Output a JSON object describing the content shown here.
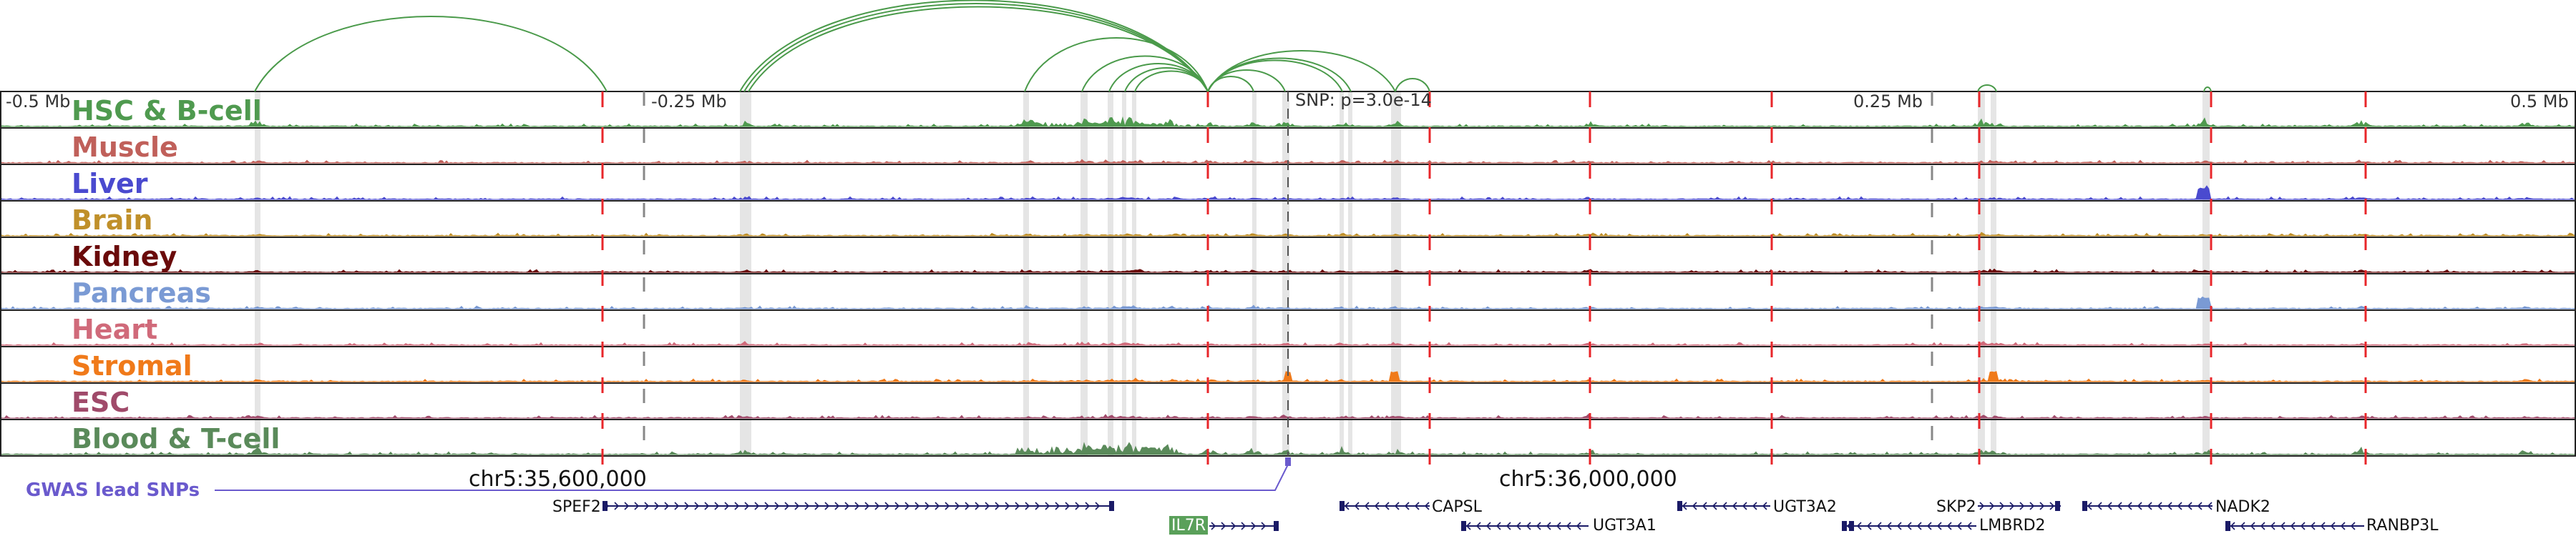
{
  "colors": {
    "link": "#4a9a4a",
    "gwas": "#6a5acd",
    "dash": "#e8262a",
    "highlight": "#dcdcdc",
    "gene": "#1a1a66",
    "il7r_bg": "#5aa05a"
  },
  "ruler": {
    "ticks": [
      {
        "label": "-0.5 Mb"
      },
      {
        "label": "-0.25 Mb"
      },
      {
        "label": "0.25 Mb"
      },
      {
        "label": "0.5 Mb"
      }
    ]
  },
  "snp": {
    "label": "SNP: p=3.0e-14"
  },
  "tracks": [
    {
      "label": "HSC & B-cell",
      "color": "#4f9a4f"
    },
    {
      "label": "Muscle",
      "color": "#c0605a"
    },
    {
      "label": "Liver",
      "color": "#4a4acf"
    },
    {
      "label": "Brain",
      "color": "#c0902a"
    },
    {
      "label": "Kidney",
      "color": "#6a0a0a"
    },
    {
      "label": "Pancreas",
      "color": "#7a9ad4"
    },
    {
      "label": "Heart",
      "color": "#d06a7a"
    },
    {
      "label": "Stromal",
      "color": "#f07a1a"
    },
    {
      "label": "ESC",
      "color": "#a04a6a"
    },
    {
      "label": "Blood & T-cell",
      "color": "#5a8a5a"
    }
  ],
  "gwas": {
    "label": "GWAS lead SNPs"
  },
  "coordinates": [
    {
      "label": "chr5:35,600,000"
    },
    {
      "label": "chr5:36,000,000"
    }
  ],
  "genes": [
    {
      "name": "SPEF2"
    },
    {
      "name": "IL7R"
    },
    {
      "name": "CAPSL"
    },
    {
      "name": "UGT3A1"
    },
    {
      "name": "UGT3A2"
    },
    {
      "name": "LMBRD2"
    },
    {
      "name": "SKP2"
    },
    {
      "name": "NADK2"
    },
    {
      "name": "RANBP3L"
    }
  ]
}
